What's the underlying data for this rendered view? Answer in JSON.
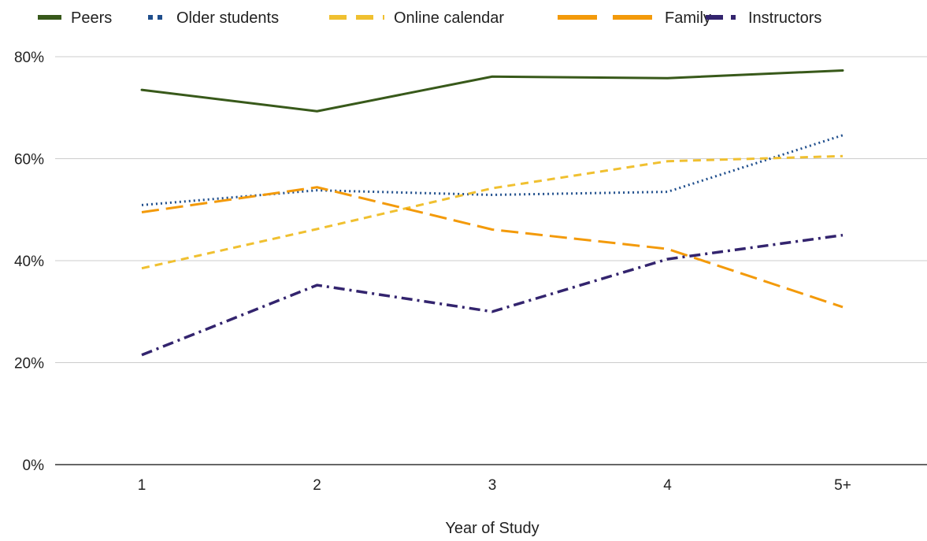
{
  "chart_data": {
    "type": "line",
    "title": "",
    "xlabel": "Year of Study",
    "ylabel": "",
    "categories": [
      "1",
      "2",
      "3",
      "4",
      "5+"
    ],
    "ylim": [
      0,
      80
    ],
    "y_ticks": [
      0,
      20,
      40,
      60,
      80
    ],
    "y_tick_labels": [
      "0%",
      "20%",
      "40%",
      "60%",
      "80%"
    ],
    "grid": true,
    "legend_position": "top",
    "series": [
      {
        "name": "Peers",
        "values": [
          73.5,
          69.3,
          76.1,
          75.8,
          77.3
        ],
        "color": "#38591a",
        "dash": "solid"
      },
      {
        "name": "Older students",
        "values": [
          50.9,
          53.8,
          52.9,
          53.5,
          64.6
        ],
        "color": "#1f4e8c",
        "dash": "dotted"
      },
      {
        "name": "Online calendar",
        "values": [
          38.5,
          46.2,
          54.2,
          59.5,
          60.5
        ],
        "color": "#f0c030",
        "dash": "dashed"
      },
      {
        "name": "Family",
        "values": [
          49.5,
          54.4,
          46.1,
          42.3,
          30.9
        ],
        "color": "#f39a0a",
        "dash": "longdash"
      },
      {
        "name": "Instructors",
        "values": [
          21.5,
          35.2,
          30.0,
          40.3,
          45.0
        ],
        "color": "#33246e",
        "dash": "dashdot"
      }
    ]
  }
}
